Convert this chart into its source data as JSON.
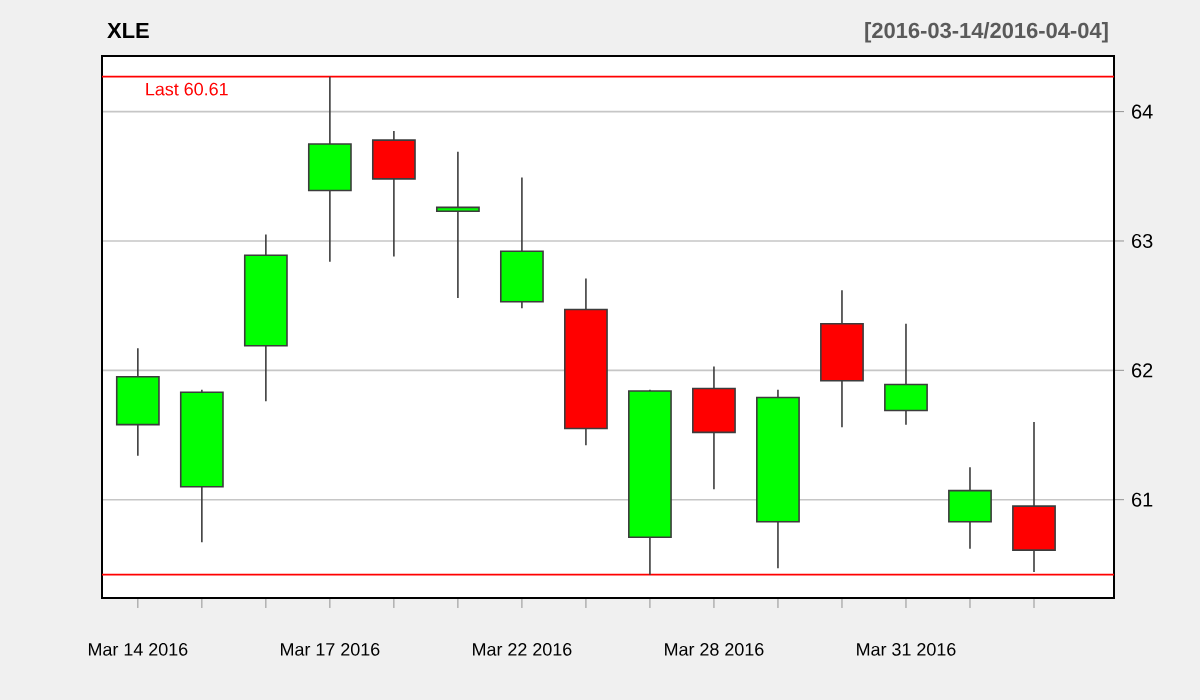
{
  "chart_data": {
    "type": "candlestick",
    "title": "XLE",
    "subtitle": "[2016-03-14/2016-04-04]",
    "categories": [
      "Mar 14 2016",
      null,
      null,
      "Mar 17 2016",
      null,
      null,
      "Mar 22 2016",
      null,
      null,
      "Mar 28 2016",
      null,
      null,
      "Mar 31 2016",
      null,
      null
    ],
    "ohlc": [
      [
        61.58,
        62.17,
        61.34,
        61.95
      ],
      [
        61.1,
        61.85,
        60.67,
        61.83
      ],
      [
        62.19,
        63.05,
        61.76,
        62.89
      ],
      [
        63.39,
        64.27,
        62.84,
        63.75
      ],
      [
        63.78,
        63.85,
        62.88,
        63.48
      ],
      [
        63.23,
        63.69,
        62.56,
        63.26
      ],
      [
        62.53,
        63.49,
        62.48,
        62.92
      ],
      [
        62.47,
        62.71,
        61.42,
        61.55
      ],
      [
        60.71,
        61.85,
        60.42,
        61.84
      ],
      [
        61.86,
        62.03,
        61.08,
        61.52
      ],
      [
        60.83,
        61.85,
        60.47,
        61.79
      ],
      [
        62.36,
        62.62,
        61.56,
        61.92
      ],
      [
        61.69,
        62.36,
        61.58,
        61.89
      ],
      [
        60.83,
        61.25,
        60.62,
        61.07
      ],
      [
        60.95,
        61.6,
        60.44,
        60.61
      ]
    ],
    "colors": [
      "#00ff00",
      "#00ff00",
      "#00ff00",
      "#00ff00",
      "#ff0000",
      "#00ff00",
      "#00ff00",
      "#ff0000",
      "#00ff00",
      "#ff0000",
      "#00ff00",
      "#ff0000",
      "#00ff00",
      "#00ff00",
      "#ff0000"
    ],
    "ylim": [
      60.24,
      64.43
    ],
    "yticks": [
      61,
      62,
      63,
      64
    ],
    "grid": "y",
    "ref_lines": [
      {
        "axis": "y",
        "value": 64.27,
        "color": "#ff0000"
      },
      {
        "axis": "y",
        "value": 60.42,
        "color": "#ff0000"
      }
    ],
    "annotations": [
      "Last 60.61"
    ]
  }
}
